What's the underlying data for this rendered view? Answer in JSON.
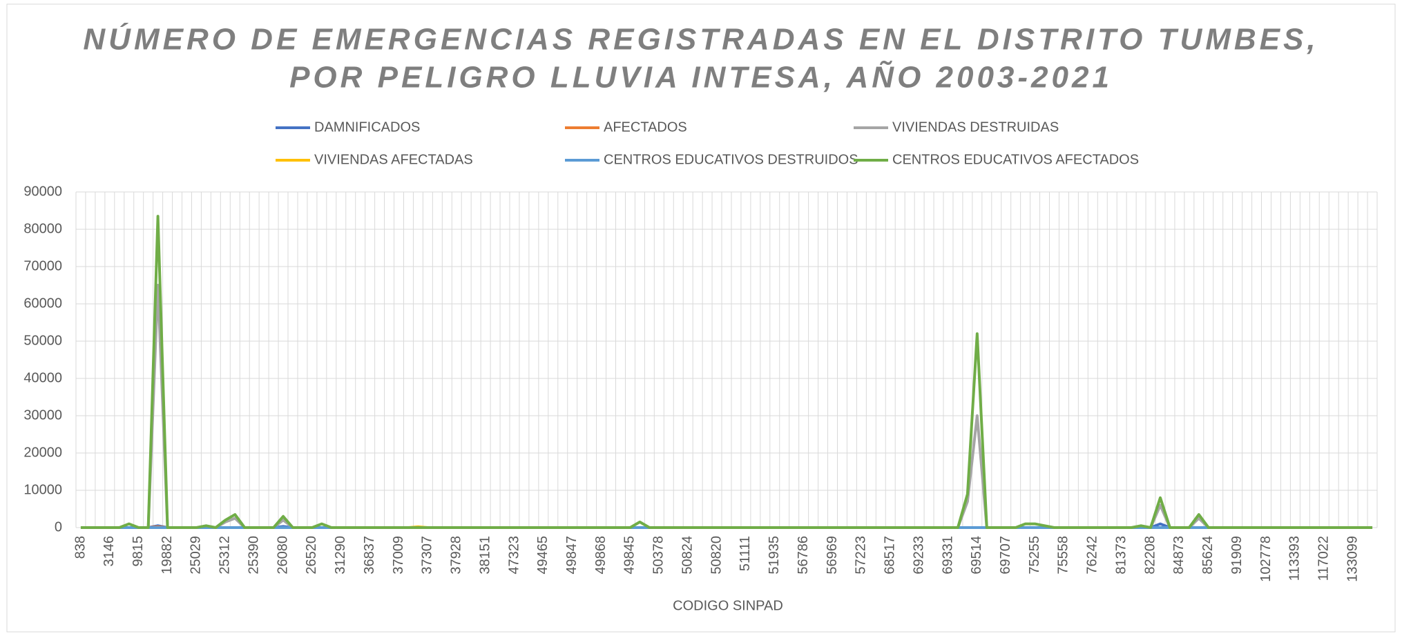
{
  "chart_data": {
    "type": "line",
    "title": "NÚMERO DE EMERGENCIAS REGISTRADAS EN EL DISTRITO TUMBES,",
    "subtitle": "POR PELIGRO LLUVIA INTESA, AÑO 2003-2021",
    "x_label": "CODIGO SINPAD",
    "categories": [
      "838",
      null,
      null,
      "3146",
      null,
      null,
      "9815",
      null,
      null,
      "19882",
      null,
      null,
      "25029",
      null,
      null,
      "25312",
      null,
      null,
      "25390",
      null,
      null,
      "26080",
      null,
      null,
      "26520",
      null,
      null,
      "31290",
      null,
      null,
      "36837",
      null,
      null,
      "37009",
      null,
      null,
      "37307",
      null,
      null,
      "37928",
      null,
      null,
      "38151",
      null,
      null,
      "47323",
      null,
      null,
      "49465",
      null,
      null,
      "49847",
      null,
      null,
      "49868",
      null,
      null,
      "49845",
      null,
      null,
      "50378",
      null,
      null,
      "50824",
      null,
      null,
      "50820",
      null,
      null,
      "51111",
      null,
      null,
      "51935",
      null,
      null,
      "56786",
      null,
      null,
      "56969",
      null,
      null,
      "57223",
      null,
      null,
      "68517",
      null,
      null,
      "69233",
      null,
      null,
      "69331",
      null,
      null,
      "69514",
      null,
      null,
      "69707",
      null,
      null,
      "75255",
      null,
      null,
      "75558",
      null,
      null,
      "76242",
      null,
      null,
      "81373",
      null,
      null,
      "82208",
      null,
      null,
      "84873",
      null,
      null,
      "85624",
      null,
      null,
      "91909",
      null,
      null,
      "102778",
      null,
      null,
      "113393",
      null,
      null,
      "117022",
      null,
      null,
      "133099",
      null,
      null
    ],
    "series": [
      {
        "name": "DAMNIFICADOS",
        "color": "#4472c4",
        "values": [
          0,
          0,
          0,
          0,
          0,
          0,
          0,
          0,
          500,
          0,
          0,
          0,
          0,
          0,
          0,
          0,
          0,
          0,
          0,
          0,
          0,
          300,
          0,
          0,
          0,
          0,
          0,
          0,
          0,
          0,
          0,
          0,
          0,
          0,
          0,
          0,
          0,
          0,
          0,
          0,
          0,
          0,
          0,
          0,
          0,
          0,
          0,
          0,
          0,
          0,
          0,
          0,
          0,
          0,
          0,
          0,
          0,
          0,
          0,
          0,
          0,
          0,
          0,
          0,
          0,
          0,
          0,
          0,
          0,
          0,
          0,
          0,
          0,
          0,
          0,
          0,
          0,
          0,
          0,
          0,
          0,
          0,
          0,
          0,
          0,
          0,
          0,
          0,
          0,
          0,
          0,
          0,
          0,
          0,
          0,
          0,
          0,
          0,
          0,
          0,
          0,
          0,
          0,
          0,
          0,
          0,
          0,
          0,
          0,
          0,
          0,
          0,
          1000,
          0,
          0,
          0,
          0,
          0,
          0,
          0,
          0,
          0,
          0,
          0,
          0,
          0,
          0,
          0,
          0,
          0,
          0,
          0,
          0,
          0,
          0
        ]
      },
      {
        "name": "AFECTADOS",
        "color": "#ed7d31",
        "values": [
          0,
          0,
          0,
          0,
          0,
          0,
          0,
          0,
          200,
          0,
          0,
          0,
          0,
          0,
          0,
          0,
          0,
          0,
          0,
          0,
          0,
          0,
          0,
          0,
          0,
          0,
          0,
          0,
          0,
          0,
          0,
          0,
          0,
          0,
          0,
          0,
          0,
          0,
          0,
          0,
          0,
          0,
          0,
          0,
          0,
          0,
          0,
          0,
          0,
          0,
          0,
          0,
          0,
          0,
          0,
          0,
          0,
          0,
          0,
          0,
          0,
          0,
          0,
          0,
          0,
          0,
          0,
          0,
          0,
          0,
          0,
          0,
          0,
          0,
          0,
          0,
          0,
          0,
          0,
          0,
          0,
          0,
          0,
          0,
          0,
          0,
          0,
          0,
          0,
          0,
          0,
          0,
          0,
          0,
          0,
          0,
          0,
          0,
          0,
          0,
          0,
          0,
          0,
          0,
          0,
          0,
          0,
          0,
          0,
          0,
          0,
          0,
          0,
          0,
          0,
          0,
          0,
          0,
          0,
          0,
          0,
          0,
          0,
          0,
          0,
          0,
          0,
          0,
          0,
          0,
          0,
          0,
          0,
          0,
          0
        ]
      },
      {
        "name": "VIVIENDAS DESTRUIDAS",
        "color": "#a5a5a5",
        "values": [
          0,
          0,
          0,
          0,
          0,
          0,
          0,
          0,
          65000,
          0,
          0,
          0,
          0,
          0,
          0,
          1500,
          2500,
          0,
          0,
          0,
          0,
          2000,
          0,
          0,
          0,
          0,
          0,
          0,
          0,
          0,
          0,
          0,
          0,
          0,
          0,
          0,
          0,
          0,
          0,
          0,
          0,
          0,
          0,
          0,
          0,
          0,
          0,
          0,
          0,
          0,
          0,
          0,
          0,
          0,
          0,
          0,
          0,
          0,
          0,
          0,
          0,
          0,
          0,
          0,
          0,
          0,
          0,
          0,
          0,
          0,
          0,
          0,
          0,
          0,
          0,
          0,
          0,
          0,
          0,
          0,
          0,
          0,
          0,
          0,
          0,
          0,
          0,
          0,
          0,
          0,
          0,
          0,
          7000,
          30000,
          0,
          0,
          0,
          0,
          0,
          0,
          0,
          0,
          0,
          0,
          0,
          0,
          0,
          0,
          0,
          0,
          0,
          0,
          6000,
          0,
          0,
          0,
          2500,
          0,
          0,
          0,
          0,
          0,
          0,
          0,
          0,
          0,
          0,
          0,
          0,
          0,
          0,
          0,
          0,
          0,
          0
        ]
      },
      {
        "name": "VIVIENDAS AFECTADAS",
        "color": "#ffc000",
        "values": [
          0,
          0,
          0,
          0,
          0,
          0,
          0,
          0,
          0,
          0,
          0,
          0,
          0,
          0,
          0,
          0,
          0,
          0,
          0,
          0,
          0,
          0,
          0,
          0,
          0,
          0,
          0,
          0,
          0,
          0,
          0,
          0,
          0,
          0,
          0,
          200,
          0,
          0,
          0,
          0,
          0,
          0,
          0,
          0,
          0,
          0,
          0,
          0,
          0,
          0,
          0,
          0,
          0,
          0,
          0,
          0,
          0,
          0,
          0,
          0,
          0,
          0,
          0,
          0,
          0,
          0,
          0,
          0,
          0,
          0,
          0,
          0,
          0,
          0,
          0,
          0,
          0,
          0,
          0,
          0,
          0,
          0,
          0,
          0,
          0,
          0,
          0,
          0,
          0,
          0,
          0,
          0,
          0,
          0,
          0,
          0,
          0,
          0,
          0,
          0,
          0,
          0,
          0,
          0,
          0,
          0,
          0,
          0,
          0,
          0,
          0,
          0,
          0,
          0,
          0,
          0,
          0,
          0,
          0,
          0,
          0,
          0,
          0,
          0,
          0,
          0,
          0,
          0,
          0,
          0,
          0,
          0,
          0,
          0,
          0
        ]
      },
      {
        "name": "CENTROS EDUCATIVOS DESTRUIDOS",
        "color": "#5b9bd5",
        "values": [
          0,
          0,
          0,
          0,
          0,
          0,
          0,
          0,
          0,
          0,
          0,
          0,
          0,
          0,
          0,
          0,
          0,
          0,
          0,
          0,
          0,
          0,
          0,
          0,
          0,
          0,
          0,
          0,
          0,
          0,
          0,
          0,
          0,
          0,
          0,
          0,
          0,
          0,
          0,
          0,
          0,
          0,
          0,
          0,
          0,
          0,
          0,
          0,
          0,
          0,
          0,
          0,
          0,
          0,
          0,
          0,
          0,
          0,
          0,
          0,
          0,
          0,
          0,
          0,
          0,
          0,
          0,
          0,
          0,
          0,
          0,
          0,
          0,
          0,
          0,
          0,
          0,
          0,
          0,
          0,
          0,
          0,
          0,
          0,
          0,
          0,
          0,
          0,
          0,
          0,
          0,
          0,
          0,
          0,
          0,
          0,
          0,
          0,
          0,
          0,
          0,
          0,
          0,
          0,
          0,
          0,
          0,
          0,
          0,
          0,
          0,
          0,
          0,
          0,
          0,
          0,
          0,
          0,
          0,
          0,
          0,
          0,
          0,
          0,
          0,
          0,
          0,
          0,
          0,
          0,
          0,
          0,
          0,
          0,
          0
        ]
      },
      {
        "name": "CENTROS EDUCATIVOS AFECTADOS",
        "color": "#70ad47",
        "values": [
          0,
          0,
          0,
          0,
          0,
          1000,
          0,
          0,
          83500,
          0,
          0,
          0,
          0,
          500,
          0,
          2000,
          3500,
          0,
          0,
          0,
          0,
          3000,
          0,
          0,
          0,
          1000,
          0,
          0,
          0,
          0,
          0,
          0,
          0,
          0,
          0,
          0,
          0,
          0,
          0,
          0,
          0,
          0,
          0,
          0,
          0,
          0,
          0,
          0,
          0,
          0,
          0,
          0,
          0,
          0,
          0,
          0,
          0,
          0,
          1500,
          0,
          0,
          0,
          0,
          0,
          0,
          0,
          0,
          0,
          0,
          0,
          0,
          0,
          0,
          0,
          0,
          0,
          0,
          0,
          0,
          0,
          0,
          0,
          0,
          0,
          0,
          0,
          0,
          0,
          0,
          0,
          0,
          0,
          9000,
          52000,
          0,
          0,
          0,
          0,
          1000,
          1000,
          500,
          0,
          0,
          0,
          0,
          0,
          0,
          0,
          0,
          0,
          500,
          0,
          8000,
          0,
          0,
          0,
          3500,
          0,
          0,
          0,
          0,
          0,
          0,
          0,
          0,
          0,
          0,
          0,
          0,
          0,
          0,
          0,
          0,
          0,
          0
        ]
      }
    ],
    "ylim": [
      0,
      90000
    ],
    "yticks": [
      0,
      10000,
      20000,
      30000,
      40000,
      50000,
      60000,
      70000,
      80000,
      90000
    ],
    "grid": true,
    "legend": "top"
  }
}
